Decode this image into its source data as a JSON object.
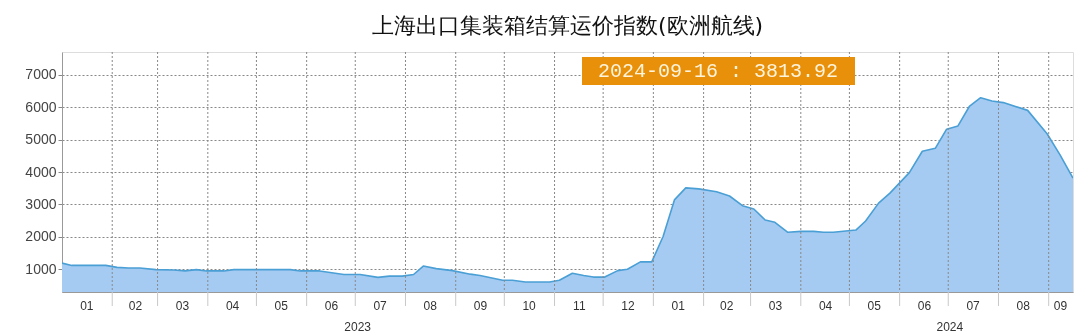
{
  "chart_data": {
    "type": "area",
    "title": "上海出口集装箱结算运价指数(欧洲航线)",
    "annotations": [
      "2024-09-16 : 3813.92",
      "2023",
      "2024"
    ],
    "x": [
      "2023-01-01",
      "2023-01-07",
      "2023-01-28",
      "2023-02-04",
      "2023-02-11",
      "2023-02-18",
      "2023-02-28",
      "2023-03-11",
      "2023-03-18",
      "2023-03-25",
      "2023-03-31",
      "2023-04-11",
      "2023-04-17",
      "2023-05-22",
      "2023-05-28",
      "2023-06-09",
      "2023-06-24",
      "2023-07-04",
      "2023-07-15",
      "2023-07-22",
      "2023-07-30",
      "2023-08-06",
      "2023-08-12",
      "2023-08-20",
      "2023-08-30",
      "2023-09-10",
      "2023-09-16",
      "2023-09-30",
      "2023-10-06",
      "2023-10-14",
      "2023-10-29",
      "2023-11-04",
      "2023-11-12",
      "2023-11-19",
      "2023-11-25",
      "2023-12-02",
      "2023-12-10",
      "2023-12-16",
      "2023-12-24",
      "2023-12-31",
      "2024-01-07",
      "2024-01-14",
      "2024-01-21",
      "2024-01-29",
      "2024-02-09",
      "2024-02-17",
      "2024-02-25",
      "2024-03-03",
      "2024-03-10",
      "2024-03-16",
      "2024-03-24",
      "2024-04-01",
      "2024-04-09",
      "2024-04-15",
      "2024-04-21",
      "2024-05-05",
      "2024-05-11",
      "2024-05-19",
      "2024-05-26",
      "2024-06-07",
      "2024-06-15",
      "2024-06-23",
      "2024-06-30",
      "2024-07-07",
      "2024-07-14",
      "2024-07-21",
      "2024-07-28",
      "2024-08-04",
      "2024-08-19",
      "2024-08-31",
      "2024-09-08",
      "2024-09-16"
    ],
    "series": [
      {
        "color": "#4a9fd5",
        "values": [
          1190,
          1120,
          1120,
          1060,
          1040,
          1040,
          990,
          980,
          950,
          990,
          950,
          950,
          990,
          990,
          950,
          950,
          840,
          840,
          750,
          790,
          790,
          840,
          1100,
          1020,
          960,
          850,
          810,
          660,
          660,
          610,
          610,
          660,
          880,
          810,
          760,
          760,
          960,
          1000,
          1230,
          1230,
          2010,
          3140,
          3510,
          3480,
          3390,
          3260,
          2960,
          2860,
          2520,
          2450,
          2140,
          2170,
          2170,
          2140,
          2140,
          2210,
          2490,
          3040,
          3350,
          3980,
          4640,
          4730,
          5320,
          5420,
          6020,
          6290,
          6190,
          6140,
          5900,
          5180,
          4530,
          3813.92
        ]
      }
    ],
    "xlim": [
      "2023-01-01",
      "2024-09-16"
    ],
    "xticks": [
      {
        "value": "2023-01-16",
        "label": "01"
      },
      {
        "value": "2023-02-01",
        "label": null
      },
      {
        "value": "2023-02-15",
        "label": "02"
      },
      {
        "value": "2023-03-01",
        "label": null
      },
      {
        "value": "2023-03-16",
        "label": "03"
      },
      {
        "value": "2023-04-01",
        "label": null
      },
      {
        "value": "2023-04-16",
        "label": "04"
      },
      {
        "value": "2023-05-01",
        "label": null
      },
      {
        "value": "2023-05-16",
        "label": "05"
      },
      {
        "value": "2023-06-01",
        "label": null
      },
      {
        "value": "2023-06-16",
        "label": "06"
      },
      {
        "value": "2023-07-01",
        "label": null
      },
      {
        "value": "2023-07-16",
        "label": "07"
      },
      {
        "value": "2023-08-01",
        "label": null
      },
      {
        "value": "2023-08-16",
        "label": "08"
      },
      {
        "value": "2023-09-01",
        "label": null
      },
      {
        "value": "2023-09-16",
        "label": "09"
      },
      {
        "value": "2023-10-01",
        "label": null
      },
      {
        "value": "2023-10-16",
        "label": "10"
      },
      {
        "value": "2023-11-01",
        "label": null
      },
      {
        "value": "2023-11-16",
        "label": "11"
      },
      {
        "value": "2023-12-01",
        "label": null
      },
      {
        "value": "2023-12-16",
        "label": "12"
      },
      {
        "value": "2024-01-01",
        "label": null
      },
      {
        "value": "2024-01-16",
        "label": "01"
      },
      {
        "value": "2024-02-01",
        "label": null
      },
      {
        "value": "2024-02-15",
        "label": "02"
      },
      {
        "value": "2024-03-01",
        "label": null
      },
      {
        "value": "2024-03-16",
        "label": "03"
      },
      {
        "value": "2024-04-01",
        "label": null
      },
      {
        "value": "2024-04-16",
        "label": "04"
      },
      {
        "value": "2024-05-01",
        "label": null
      },
      {
        "value": "2024-05-16",
        "label": "05"
      },
      {
        "value": "2024-06-01",
        "label": null
      },
      {
        "value": "2024-06-16",
        "label": "06"
      },
      {
        "value": "2024-07-01",
        "label": null
      },
      {
        "value": "2024-07-16",
        "label": "07"
      },
      {
        "value": "2024-08-01",
        "label": null
      },
      {
        "value": "2024-08-16",
        "label": "08"
      },
      {
        "value": "2024-09-01",
        "label": null
      },
      {
        "value": "2024-09-08",
        "label": "09"
      }
    ],
    "ylim": [
      300,
      7700
    ],
    "yticks": [
      1000,
      2000,
      3000,
      4000,
      5000,
      6000,
      7000
    ],
    "grid": true
  }
}
